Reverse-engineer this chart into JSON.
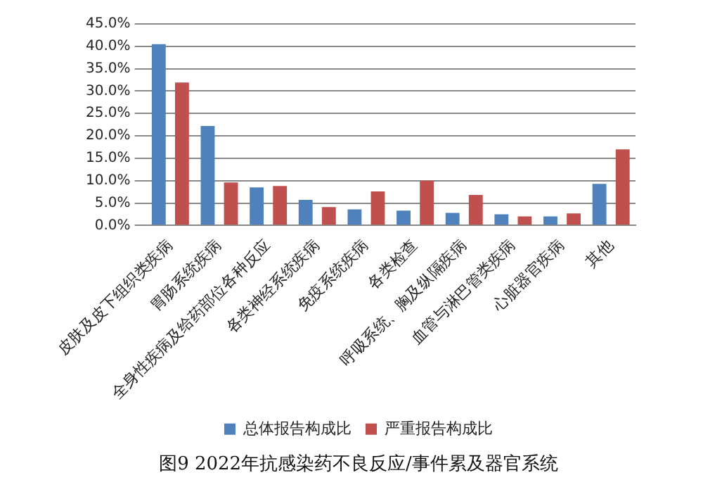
{
  "chart_data": {
    "type": "bar",
    "title": "图9 2022年抗感染药不良反应/事件累及器官系统",
    "categories": [
      "皮肤及皮下组织类疾病",
      "胃肠系统疾病",
      "全身性疾病及给药部位各种反应",
      "各类神经系统疾病",
      "免疫系统疾病",
      "各类检查",
      "呼吸系统、胸及纵隔疾病",
      "血管与淋巴管类疾病",
      "心脏器官疾病",
      "其他"
    ],
    "series": [
      {
        "name": "总体报告构成比",
        "color": "#4f81bd",
        "values": [
          40.5,
          22.2,
          8.5,
          5.7,
          3.6,
          3.3,
          2.8,
          2.5,
          2.0,
          9.3
        ]
      },
      {
        "name": "严重报告构成比",
        "color": "#c0504d",
        "values": [
          31.9,
          9.6,
          8.8,
          4.1,
          7.6,
          10.0,
          6.8,
          2.0,
          2.7,
          17.0
        ]
      }
    ],
    "ylim": [
      0,
      45
    ],
    "yticks": [
      {
        "value": 0,
        "label": "0.0%"
      },
      {
        "value": 5,
        "label": "5.0%"
      },
      {
        "value": 10,
        "label": "10.0%"
      },
      {
        "value": 15,
        "label": "15.0%"
      },
      {
        "value": 20,
        "label": "20.0%"
      },
      {
        "value": 25,
        "label": "25.0%"
      },
      {
        "value": 30,
        "label": "30.0%"
      },
      {
        "value": 35,
        "label": "35.0%"
      },
      {
        "value": 40,
        "label": "40.0%"
      },
      {
        "value": 45,
        "label": "45.0%"
      }
    ],
    "grid": "y",
    "legend": "bottom"
  }
}
